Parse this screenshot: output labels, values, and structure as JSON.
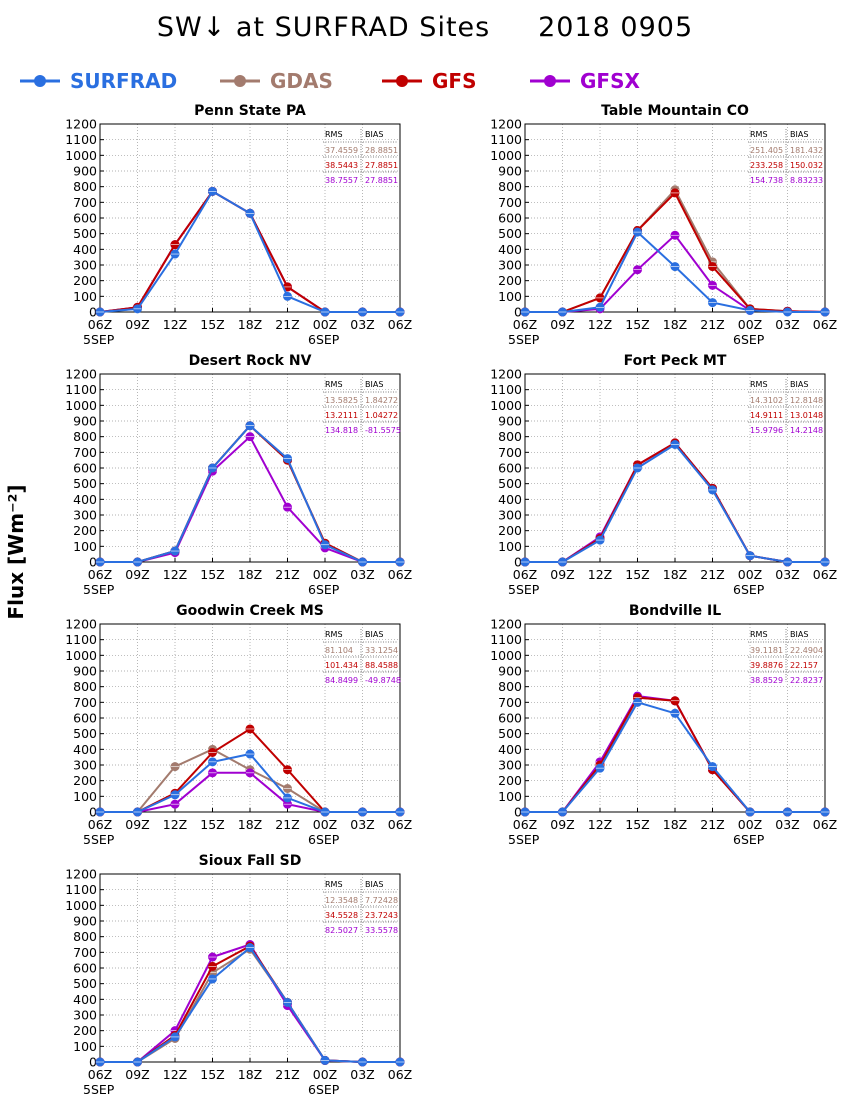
{
  "title": "SW↓ at SURFRAD Sites     2018 0905",
  "ylabel": "Flux [Wm⁻²]",
  "legend": [
    {
      "name": "SURFRAD",
      "color": "#2a6fe0"
    },
    {
      "name": "GDAS",
      "color": "#a37b6e"
    },
    {
      "name": "GFS",
      "color": "#c00000"
    },
    {
      "name": "GFSX",
      "color": "#a000d0"
    }
  ],
  "stats_headers": {
    "rms": "RMS",
    "bias": "BIAS"
  },
  "chart_data": [
    {
      "type": "line",
      "title": "Penn State PA",
      "categories": [
        "06Z",
        "09Z",
        "12Z",
        "15Z",
        "18Z",
        "21Z",
        "00Z",
        "03Z",
        "06Z"
      ],
      "date_labels": [
        "5SEP",
        "",
        "",
        "",
        "",
        "",
        "6SEP",
        "",
        ""
      ],
      "ylim": [
        0,
        1200
      ],
      "yticks": [
        0,
        100,
        200,
        300,
        400,
        500,
        600,
        700,
        800,
        900,
        1000,
        1100,
        1200
      ],
      "grid": true,
      "series": [
        {
          "name": "SURFRAD",
          "values": [
            0,
            20,
            370,
            770,
            630,
            100,
            0,
            0,
            0
          ]
        },
        {
          "name": "GDAS",
          "values": [
            0,
            30,
            430,
            770,
            630,
            160,
            0,
            0,
            0
          ]
        },
        {
          "name": "GFS",
          "values": [
            0,
            30,
            430,
            770,
            630,
            160,
            0,
            0,
            0
          ]
        },
        {
          "name": "GFSX",
          "values": [
            0,
            30,
            430,
            770,
            630,
            160,
            0,
            0,
            0
          ]
        }
      ],
      "stats": [
        {
          "rms": "37.4559",
          "bias": "28.8851"
        },
        {
          "rms": "38.5443",
          "bias": "27.8851"
        },
        {
          "rms": "38.7557",
          "bias": "27.8851"
        }
      ]
    },
    {
      "type": "line",
      "title": "Table Mountain CO",
      "categories": [
        "06Z",
        "09Z",
        "12Z",
        "15Z",
        "18Z",
        "21Z",
        "00Z",
        "03Z",
        "06Z"
      ],
      "date_labels": [
        "5SEP",
        "",
        "",
        "",
        "",
        "",
        "6SEP",
        "",
        ""
      ],
      "ylim": [
        0,
        1200
      ],
      "yticks": [
        0,
        100,
        200,
        300,
        400,
        500,
        600,
        700,
        800,
        900,
        1000,
        1100,
        1200
      ],
      "grid": true,
      "series": [
        {
          "name": "SURFRAD",
          "values": [
            0,
            0,
            30,
            510,
            290,
            60,
            10,
            0,
            0
          ]
        },
        {
          "name": "GDAS",
          "values": [
            0,
            0,
            90,
            520,
            780,
            320,
            20,
            5,
            0
          ]
        },
        {
          "name": "GFS",
          "values": [
            0,
            0,
            90,
            520,
            760,
            290,
            20,
            5,
            0
          ]
        },
        {
          "name": "GFSX",
          "values": [
            0,
            0,
            20,
            270,
            490,
            170,
            10,
            5,
            0
          ]
        }
      ],
      "stats": [
        {
          "rms": "251.405",
          "bias": "181.432"
        },
        {
          "rms": "233.258",
          "bias": "150.032"
        },
        {
          "rms": "154.738",
          "bias": "8.83233"
        }
      ]
    },
    {
      "type": "line",
      "title": "Desert Rock NV",
      "categories": [
        "06Z",
        "09Z",
        "12Z",
        "15Z",
        "18Z",
        "21Z",
        "00Z",
        "03Z",
        "06Z"
      ],
      "date_labels": [
        "5SEP",
        "",
        "",
        "",
        "",
        "",
        "6SEP",
        "",
        ""
      ],
      "ylim": [
        0,
        1200
      ],
      "yticks": [
        0,
        100,
        200,
        300,
        400,
        500,
        600,
        700,
        800,
        900,
        1000,
        1100,
        1200
      ],
      "grid": true,
      "series": [
        {
          "name": "SURFRAD",
          "values": [
            0,
            0,
            70,
            600,
            870,
            660,
            110,
            0,
            0
          ]
        },
        {
          "name": "GDAS",
          "values": [
            0,
            0,
            70,
            600,
            870,
            650,
            120,
            0,
            0
          ]
        },
        {
          "name": "GFS",
          "values": [
            0,
            0,
            70,
            600,
            870,
            650,
            120,
            0,
            0
          ]
        },
        {
          "name": "GFSX",
          "values": [
            0,
            0,
            60,
            580,
            800,
            350,
            90,
            0,
            0
          ]
        }
      ],
      "stats": [
        {
          "rms": "13.5825",
          "bias": "1.84272"
        },
        {
          "rms": "13.2111",
          "bias": "1.04272"
        },
        {
          "rms": "134.818",
          "bias": "-81.5575"
        }
      ]
    },
    {
      "type": "line",
      "title": "Fort Peck MT",
      "categories": [
        "06Z",
        "09Z",
        "12Z",
        "15Z",
        "18Z",
        "21Z",
        "00Z",
        "03Z",
        "06Z"
      ],
      "date_labels": [
        "5SEP",
        "",
        "",
        "",
        "",
        "",
        "6SEP",
        "",
        ""
      ],
      "ylim": [
        0,
        1200
      ],
      "yticks": [
        0,
        100,
        200,
        300,
        400,
        500,
        600,
        700,
        800,
        900,
        1000,
        1100,
        1200
      ],
      "grid": true,
      "series": [
        {
          "name": "SURFRAD",
          "values": [
            0,
            0,
            140,
            600,
            750,
            460,
            40,
            0,
            0
          ]
        },
        {
          "name": "GDAS",
          "values": [
            0,
            0,
            150,
            620,
            760,
            470,
            40,
            0,
            0
          ]
        },
        {
          "name": "GFS",
          "values": [
            0,
            0,
            150,
            620,
            760,
            470,
            40,
            0,
            0
          ]
        },
        {
          "name": "GFSX",
          "values": [
            0,
            0,
            160,
            620,
            760,
            470,
            40,
            0,
            0
          ]
        }
      ],
      "stats": [
        {
          "rms": "14.3102",
          "bias": "12.8148"
        },
        {
          "rms": "14.9111",
          "bias": "13.0148"
        },
        {
          "rms": "15.9796",
          "bias": "14.2148"
        }
      ]
    },
    {
      "type": "line",
      "title": "Goodwin Creek MS",
      "categories": [
        "06Z",
        "09Z",
        "12Z",
        "15Z",
        "18Z",
        "21Z",
        "00Z",
        "03Z",
        "06Z"
      ],
      "date_labels": [
        "5SEP",
        "",
        "",
        "",
        "",
        "",
        "6SEP",
        "",
        ""
      ],
      "ylim": [
        0,
        1200
      ],
      "yticks": [
        0,
        100,
        200,
        300,
        400,
        500,
        600,
        700,
        800,
        900,
        1000,
        1100,
        1200
      ],
      "grid": true,
      "series": [
        {
          "name": "SURFRAD",
          "values": [
            0,
            0,
            110,
            320,
            370,
            90,
            0,
            0,
            0
          ]
        },
        {
          "name": "GDAS",
          "values": [
            0,
            0,
            290,
            400,
            270,
            150,
            0,
            0,
            0
          ]
        },
        {
          "name": "GFS",
          "values": [
            0,
            0,
            120,
            380,
            530,
            270,
            0,
            0,
            0
          ]
        },
        {
          "name": "GFSX",
          "values": [
            0,
            0,
            50,
            250,
            250,
            50,
            0,
            0,
            0
          ]
        }
      ],
      "stats": [
        {
          "rms": "81.104",
          "bias": "33.1254"
        },
        {
          "rms": "101.434",
          "bias": "88.4588"
        },
        {
          "rms": "84.8499",
          "bias": "-49.8748"
        }
      ]
    },
    {
      "type": "line",
      "title": "Bondville IL",
      "categories": [
        "06Z",
        "09Z",
        "12Z",
        "15Z",
        "18Z",
        "21Z",
        "00Z",
        "03Z",
        "06Z"
      ],
      "date_labels": [
        "5SEP",
        "",
        "",
        "",
        "",
        "",
        "6SEP",
        "",
        ""
      ],
      "ylim": [
        0,
        1200
      ],
      "yticks": [
        0,
        100,
        200,
        300,
        400,
        500,
        600,
        700,
        800,
        900,
        1000,
        1100,
        1200
      ],
      "grid": true,
      "series": [
        {
          "name": "SURFRAD",
          "values": [
            0,
            0,
            280,
            700,
            630,
            290,
            0,
            0,
            0
          ]
        },
        {
          "name": "GDAS",
          "values": [
            0,
            0,
            300,
            730,
            710,
            270,
            0,
            0,
            0
          ]
        },
        {
          "name": "GFS",
          "values": [
            0,
            0,
            300,
            730,
            710,
            270,
            0,
            0,
            0
          ]
        },
        {
          "name": "GFSX",
          "values": [
            0,
            0,
            320,
            740,
            710,
            270,
            0,
            0,
            0
          ]
        }
      ],
      "stats": [
        {
          "rms": "39.1181",
          "bias": "22.4904"
        },
        {
          "rms": "39.8876",
          "bias": "22.157"
        },
        {
          "rms": "38.8529",
          "bias": "22.8237"
        }
      ]
    },
    {
      "type": "line",
      "title": "Sioux Fall SD",
      "categories": [
        "06Z",
        "09Z",
        "12Z",
        "15Z",
        "18Z",
        "21Z",
        "00Z",
        "03Z",
        "06Z"
      ],
      "date_labels": [
        "5SEP",
        "",
        "",
        "",
        "",
        "",
        "6SEP",
        "",
        ""
      ],
      "ylim": [
        0,
        1200
      ],
      "yticks": [
        0,
        100,
        200,
        300,
        400,
        500,
        600,
        700,
        800,
        900,
        1000,
        1100,
        1200
      ],
      "grid": true,
      "series": [
        {
          "name": "SURFRAD",
          "values": [
            0,
            0,
            160,
            530,
            730,
            380,
            10,
            0,
            0
          ]
        },
        {
          "name": "GDAS",
          "values": [
            0,
            0,
            150,
            570,
            720,
            380,
            10,
            0,
            0
          ]
        },
        {
          "name": "GFS",
          "values": [
            0,
            0,
            170,
            610,
            740,
            380,
            10,
            0,
            0
          ]
        },
        {
          "name": "GFSX",
          "values": [
            0,
            0,
            200,
            670,
            750,
            360,
            10,
            0,
            0
          ]
        }
      ],
      "stats": [
        {
          "rms": "12.3548",
          "bias": "7.72428"
        },
        {
          "rms": "34.5528",
          "bias": "23.7243"
        },
        {
          "rms": "82.5027",
          "bias": "33.5578"
        }
      ]
    }
  ]
}
